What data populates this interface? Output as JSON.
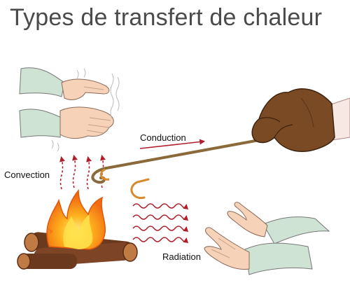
{
  "title": "Types de transfert de chaleur",
  "labels": {
    "convection": "Convection",
    "conduction": "Conduction",
    "radiation": "Radiation"
  },
  "colors": {
    "arrow": "#b01e2c",
    "flame_outer": "#f7a21a",
    "flame_inner": "#ffe04a",
    "log": "#6b3a1e",
    "glove": "#7a4a24",
    "skin": "#f6d2b8",
    "sleeve": "#cfe3d4",
    "rod": "#8a6a3a"
  }
}
